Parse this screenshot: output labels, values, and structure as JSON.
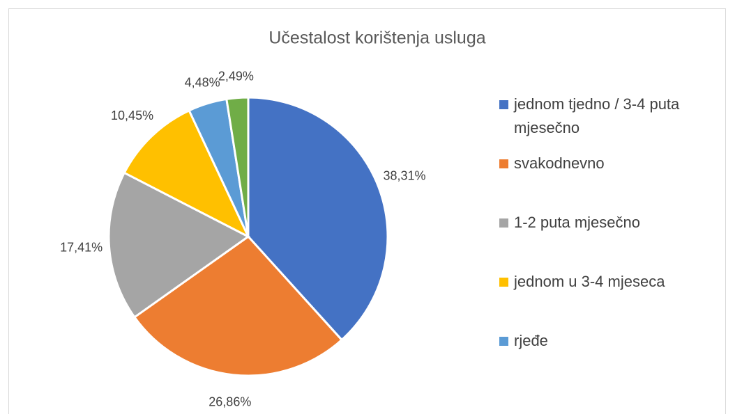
{
  "chart_data": {
    "type": "pie",
    "title": "Učestalost korištenja usluga",
    "categories": [
      "jednom tjedno / 3-4 puta mjesečno",
      "svakodnevno",
      "1-2 puta mjesečno",
      "jednom u 3-4 mjeseca",
      "rjeđe",
      null
    ],
    "values": [
      38.31,
      26.86,
      17.41,
      10.45,
      4.48,
      2.49
    ],
    "value_labels": [
      "38,31%",
      "26,86%",
      "17,41%",
      "10,45%",
      "4,48%",
      "2,49%"
    ],
    "colors": [
      "#4472c4",
      "#ed7d31",
      "#a5a5a5",
      "#ffc000",
      "#5b9bd5",
      "#70ad47"
    ]
  }
}
